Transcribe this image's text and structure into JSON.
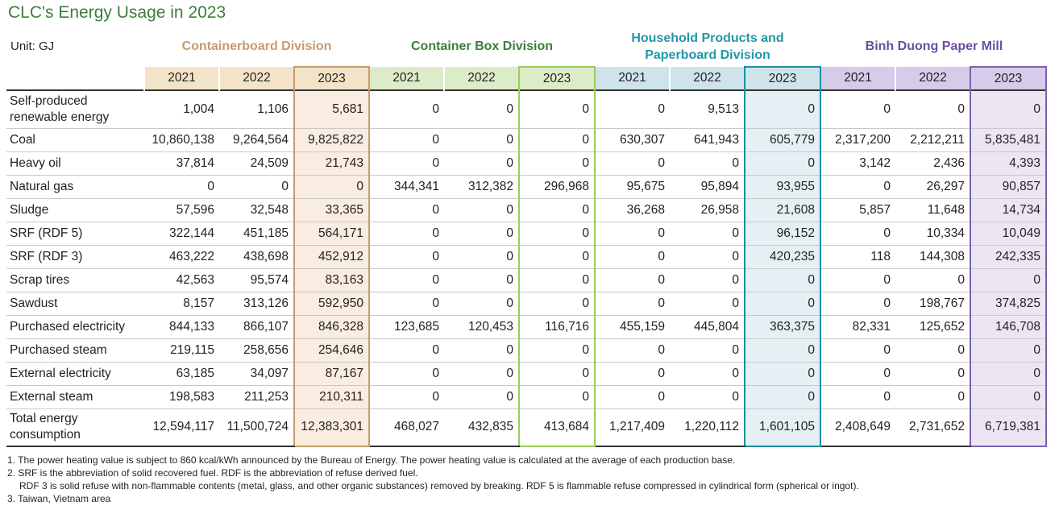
{
  "title": "CLC's Energy Usage in 2023",
  "unit": "Unit: GJ",
  "divisions": [
    {
      "name": "Containerboard Division",
      "color": "#c89b6d",
      "header_bg": "#f3e3c8",
      "col_bg": "#f9ece0",
      "border": "#c89b6d"
    },
    {
      "name": "Container Box Division",
      "color": "#3e7d3b",
      "header_bg": "#ddecc8",
      "col_bg": "#ffffff",
      "border": "#9acd5a"
    },
    {
      "name": "Household Products and Paperboard Division",
      "color": "#2596a8",
      "header_bg": "#cfe3ea",
      "col_bg": "#e5f0f4",
      "border": "#1f8fa2"
    },
    {
      "name": "Binh Duong Paper Mill",
      "color": "#6a4fa1",
      "header_bg": "#d6cbe8",
      "col_bg": "#ece6f4",
      "border": "#7a62b0"
    }
  ],
  "years": [
    "2021",
    "2022",
    "2023"
  ],
  "rows": [
    {
      "label": "Self-produced renewable energy",
      "values": [
        "1,004",
        "1,106",
        "5,681",
        "0",
        "0",
        "0",
        "0",
        "9,513",
        "0",
        "0",
        "0",
        "0"
      ]
    },
    {
      "label": "Coal",
      "values": [
        "10,860,138",
        "9,264,564",
        "9,825,822",
        "0",
        "0",
        "0",
        "630,307",
        "641,943",
        "605,779",
        "2,317,200",
        "2,212,211",
        "5,835,481"
      ]
    },
    {
      "label": "Heavy oil",
      "values": [
        "37,814",
        "24,509",
        "21,743",
        "0",
        "0",
        "0",
        "0",
        "0",
        "0",
        "3,142",
        "2,436",
        "4,393"
      ]
    },
    {
      "label": "Natural gas",
      "values": [
        "0",
        "0",
        "0",
        "344,341",
        "312,382",
        "296,968",
        "95,675",
        "95,894",
        "93,955",
        "0",
        "26,297",
        "90,857"
      ]
    },
    {
      "label": "Sludge",
      "values": [
        "57,596",
        "32,548",
        "33,365",
        "0",
        "0",
        "0",
        "36,268",
        "26,958",
        "21,608",
        "5,857",
        "11,648",
        "14,734"
      ]
    },
    {
      "label": "SRF (RDF 5)",
      "values": [
        "322,144",
        "451,185",
        "564,171",
        "0",
        "0",
        "0",
        "0",
        "0",
        "96,152",
        "0",
        "10,334",
        "10,049"
      ]
    },
    {
      "label": "SRF (RDF 3)",
      "values": [
        "463,222",
        "438,698",
        "452,912",
        "0",
        "0",
        "0",
        "0",
        "0",
        "420,235",
        "118",
        "144,308",
        "242,335"
      ]
    },
    {
      "label": "Scrap tires",
      "values": [
        "42,563",
        "95,574",
        "83,163",
        "0",
        "0",
        "0",
        "0",
        "0",
        "0",
        "0",
        "0",
        "0"
      ]
    },
    {
      "label": "Sawdust",
      "values": [
        "8,157",
        "313,126",
        "592,950",
        "0",
        "0",
        "0",
        "0",
        "0",
        "0",
        "0",
        "198,767",
        "374,825"
      ]
    },
    {
      "label": "Purchased electricity",
      "values": [
        "844,133",
        "866,107",
        "846,328",
        "123,685",
        "120,453",
        "116,716",
        "455,159",
        "445,804",
        "363,375",
        "82,331",
        "125,652",
        "146,708"
      ]
    },
    {
      "label": "Purchased steam",
      "values": [
        "219,115",
        "258,656",
        "254,646",
        "0",
        "0",
        "0",
        "0",
        "0",
        "0",
        "0",
        "0",
        "0"
      ]
    },
    {
      "label": "External electricity",
      "values": [
        "63,185",
        "34,097",
        "87,167",
        "0",
        "0",
        "0",
        "0",
        "0",
        "0",
        "0",
        "0",
        "0"
      ]
    },
    {
      "label": "External steam",
      "values": [
        "198,583",
        "211,253",
        "210,311",
        "0",
        "0",
        "0",
        "0",
        "0",
        "0",
        "0",
        "0",
        "0"
      ]
    },
    {
      "label": "Total energy consumption",
      "values": [
        "12,594,117",
        "11,500,724",
        "12,383,301",
        "468,027",
        "432,835",
        "413,684",
        "1,217,409",
        "1,220,112",
        "1,601,105",
        "2,408,649",
        "2,731,652",
        "6,719,381"
      ]
    }
  ],
  "footnotes": [
    "1. The power heating value is subject to 860 kcal/kWh announced by the Bureau of Energy. The power heating value is calculated at the average of each production base.",
    "2. SRF is the abbreviation of solid recovered fuel. RDF is the abbreviation of refuse derived fuel.",
    "RDF 3 is solid refuse with non-flammable contents (metal, glass, and other organic substances) removed by breaking. RDF 5 is flammable refuse compressed in cylindrical form (spherical or ingot).",
    "3. Taiwan, Vietnam area"
  ]
}
